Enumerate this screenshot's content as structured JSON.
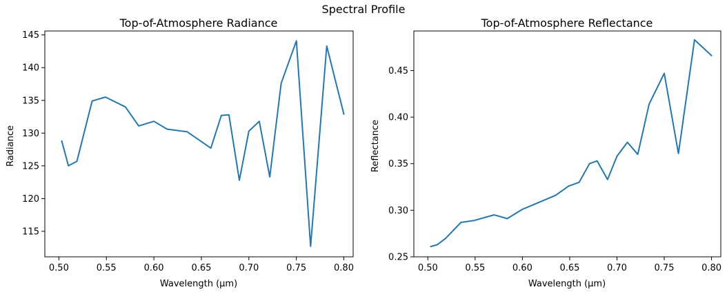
{
  "suptitle": "Spectral Profile",
  "line_color": "#1f77b4",
  "chart_data": [
    {
      "type": "line",
      "title": "Top-of-Atmosphere Radiance",
      "xlabel": "Wavelength (μm)",
      "ylabel": "Radiance",
      "xlim": [
        0.4852,
        0.8098
      ],
      "ylim": [
        111.1,
        145.6
      ],
      "xticks": [
        0.5,
        0.55,
        0.6,
        0.65,
        0.7,
        0.75,
        0.8
      ],
      "xtick_labels": [
        "0.50",
        "0.55",
        "0.60",
        "0.65",
        "0.70",
        "0.75",
        "0.80"
      ],
      "yticks": [
        115,
        120,
        125,
        130,
        135,
        140,
        145
      ],
      "ytick_labels": [
        "115",
        "120",
        "125",
        "130",
        "135",
        "140",
        "145"
      ],
      "series": [
        {
          "x": [
            0.503,
            0.51,
            0.519,
            0.535,
            0.549,
            0.57,
            0.584,
            0.6,
            0.614,
            0.635,
            0.649,
            0.66,
            0.671,
            0.679,
            0.69,
            0.7,
            0.711,
            0.722,
            0.734,
            0.75,
            0.765,
            0.782,
            0.8
          ],
          "y": [
            128.8,
            125.0,
            125.7,
            134.9,
            135.5,
            134.0,
            131.1,
            131.8,
            130.6,
            130.2,
            128.8,
            127.7,
            132.7,
            132.8,
            122.8,
            130.3,
            131.8,
            123.3,
            137.6,
            144.1,
            112.7,
            143.3,
            132.9
          ]
        }
      ]
    },
    {
      "type": "line",
      "title": "Top-of-Atmosphere Reflectance",
      "xlabel": "Wavelength (μm)",
      "ylabel": "Reflectance",
      "xlim": [
        0.4852,
        0.8098
      ],
      "ylim": [
        0.25,
        0.4925
      ],
      "xticks": [
        0.5,
        0.55,
        0.6,
        0.65,
        0.7,
        0.75,
        0.8
      ],
      "xtick_labels": [
        "0.50",
        "0.55",
        "0.60",
        "0.65",
        "0.70",
        "0.75",
        "0.80"
      ],
      "yticks": [
        0.25,
        0.3,
        0.35,
        0.4,
        0.45
      ],
      "ytick_labels": [
        "0.25",
        "0.30",
        "0.35",
        "0.40",
        "0.45"
      ],
      "series": [
        {
          "x": [
            0.503,
            0.51,
            0.519,
            0.535,
            0.549,
            0.57,
            0.584,
            0.6,
            0.614,
            0.635,
            0.649,
            0.66,
            0.671,
            0.679,
            0.69,
            0.7,
            0.711,
            0.722,
            0.734,
            0.75,
            0.765,
            0.782,
            0.8
          ],
          "y": [
            0.261,
            0.263,
            0.27,
            0.287,
            0.289,
            0.295,
            0.291,
            0.301,
            0.307,
            0.316,
            0.326,
            0.33,
            0.35,
            0.353,
            0.333,
            0.358,
            0.373,
            0.36,
            0.414,
            0.447,
            0.361,
            0.483,
            0.466
          ]
        }
      ]
    }
  ]
}
